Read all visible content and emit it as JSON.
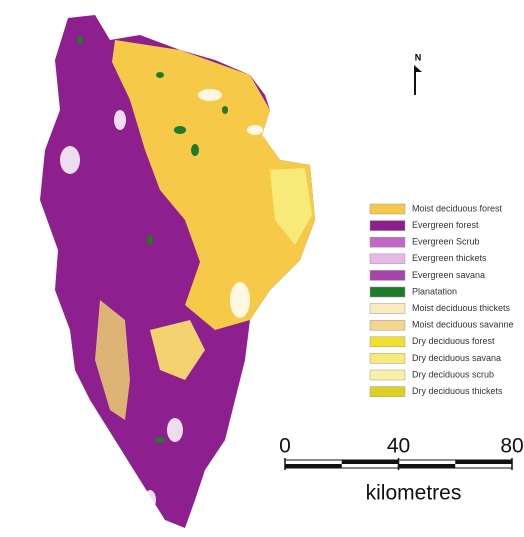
{
  "north_label": "N",
  "legend": [
    {
      "label": "Moist deciduous forest",
      "color": "#f7c948"
    },
    {
      "label": "Evergreen forest",
      "color": "#8e1f8e"
    },
    {
      "label": "Evergreen Scrub",
      "color": "#c466c4"
    },
    {
      "label": "Evergreen thickets",
      "color": "#e6b8e6"
    },
    {
      "label": "Evergreen savana",
      "color": "#a844a8"
    },
    {
      "label": "Planatation",
      "color": "#1f7a2a"
    },
    {
      "label": "Moist deciduous thickets",
      "color": "#fbecc0"
    },
    {
      "label": "Moist deciduous savanne",
      "color": "#f5d490"
    },
    {
      "label": "Dry deciduous forest",
      "color": "#f3e02c"
    },
    {
      "label": "Dry deciduous savana",
      "color": "#f8ea78"
    },
    {
      "label": "Dry deciduous scrub",
      "color": "#faf0a8"
    },
    {
      "label": "Dry deciduous thickets",
      "color": "#ddd020"
    }
  ],
  "scale": {
    "ticks": [
      0,
      40,
      80
    ],
    "unit": "kilometres"
  }
}
